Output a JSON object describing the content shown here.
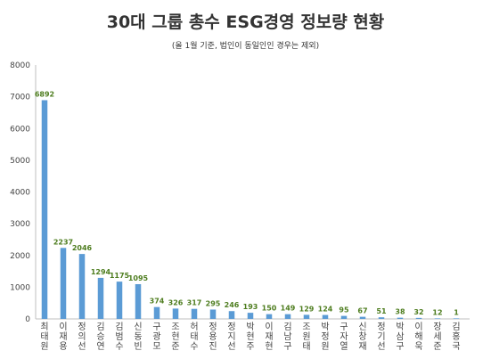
{
  "title": "30대 그룹 총수 ESG경영 정보량 현황",
  "subtitle": "(올 1월 기준, 법인이 동일인인 경우는 제외)",
  "colors": {
    "bar": "#5b9bd5",
    "value_label": "#4e7d1f",
    "grid": "#d9d9d9",
    "axis": "#bfbfbf"
  },
  "chart_data": {
    "type": "bar",
    "title": "30대 그룹 총수 ESG경영 정보량 현황",
    "subtitle": "(올 1월 기준, 법인이 동일인인 경우는 제외)",
    "xlabel": "",
    "ylabel": "",
    "ylim": [
      0,
      8000
    ],
    "yticks": [
      "0",
      "1000",
      "2000",
      "3000",
      "4000",
      "5000",
      "6000",
      "7000",
      "8000"
    ],
    "grid": false,
    "legend": "none",
    "categories": [
      "최태원",
      "이재용",
      "정의선",
      "김승연",
      "김범수",
      "신동빈",
      "구광모",
      "조현준",
      "허태수",
      "정용진",
      "정지선",
      "박현주",
      "이재현",
      "김남구",
      "조원태",
      "박정원",
      "구자열",
      "신창재",
      "정기선",
      "박삼구",
      "이해욱",
      "장세준",
      "김홍국"
    ],
    "values": [
      6892,
      2237,
      2046,
      1294,
      1175,
      1095,
      374,
      326,
      317,
      295,
      246,
      193,
      150,
      149,
      129,
      124,
      95,
      67,
      51,
      38,
      32,
      12,
      1
    ],
    "value_labels": [
      "6892",
      "2237",
      "2046",
      "1294",
      "1175",
      "1095",
      "374",
      "326",
      "317",
      "295",
      "246",
      "193",
      "150",
      "149",
      "129",
      "124",
      "95",
      "67",
      "51",
      "38",
      "32",
      "12",
      "1"
    ]
  }
}
